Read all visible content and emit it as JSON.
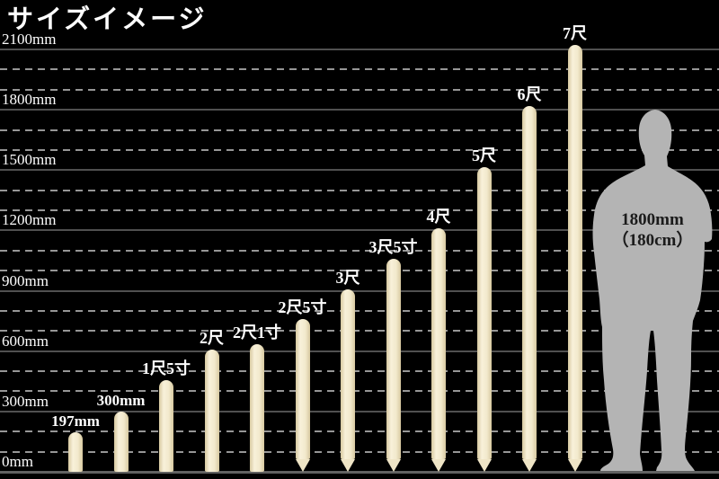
{
  "title": "サイズイメージ",
  "chart_data": {
    "type": "bar",
    "title": "サイズイメージ",
    "unit": "mm",
    "ylim": [
      0,
      2100
    ],
    "grid": {
      "solid_interval_mm": 300,
      "dashed_interval_mm": 100,
      "grid_on": true
    },
    "yticks": [
      {
        "mm": 2100,
        "label": "2100mm"
      },
      {
        "mm": 1800,
        "label": "1800mm"
      },
      {
        "mm": 1500,
        "label": "1500mm"
      },
      {
        "mm": 1200,
        "label": "1200mm"
      },
      {
        "mm": 900,
        "label": "900mm"
      },
      {
        "mm": 600,
        "label": "600mm"
      },
      {
        "mm": 300,
        "label": "300mm"
      },
      {
        "mm": 0,
        "label": "0mm"
      }
    ],
    "bars": [
      {
        "label": "197mm",
        "mm": 197,
        "tip": "flat"
      },
      {
        "label": "300mm",
        "mm": 300,
        "tip": "flat"
      },
      {
        "label": "1尺5寸",
        "mm": 455,
        "tip": "flat"
      },
      {
        "label": "2尺",
        "mm": 606,
        "tip": "flat"
      },
      {
        "label": "2尺1寸",
        "mm": 636,
        "tip": "flat"
      },
      {
        "label": "2尺5寸",
        "mm": 758,
        "tip": "pointed"
      },
      {
        "label": "3尺",
        "mm": 909,
        "tip": "pointed"
      },
      {
        "label": "3尺5寸",
        "mm": 1061,
        "tip": "pointed"
      },
      {
        "label": "4尺",
        "mm": 1212,
        "tip": "pointed"
      },
      {
        "label": "5尺",
        "mm": 1515,
        "tip": "pointed"
      },
      {
        "label": "6尺",
        "mm": 1818,
        "tip": "pointed"
      },
      {
        "label": "7尺",
        "mm": 2121,
        "tip": "pointed"
      }
    ],
    "reference_figure": {
      "height_mm": 1800,
      "label_line1": "1800mm",
      "label_line2": "（180cm）"
    }
  },
  "colors": {
    "background": "#000000",
    "stake": "#f2e9cc",
    "stake_highlight": "#f8f1da",
    "stake_edge": "#d7c9a0",
    "grid_solid": "#505050",
    "grid_dashed": "#969696",
    "text": "#ffffff",
    "figure": "#b4b4b4",
    "figure_text": "#1b1b1b"
  }
}
